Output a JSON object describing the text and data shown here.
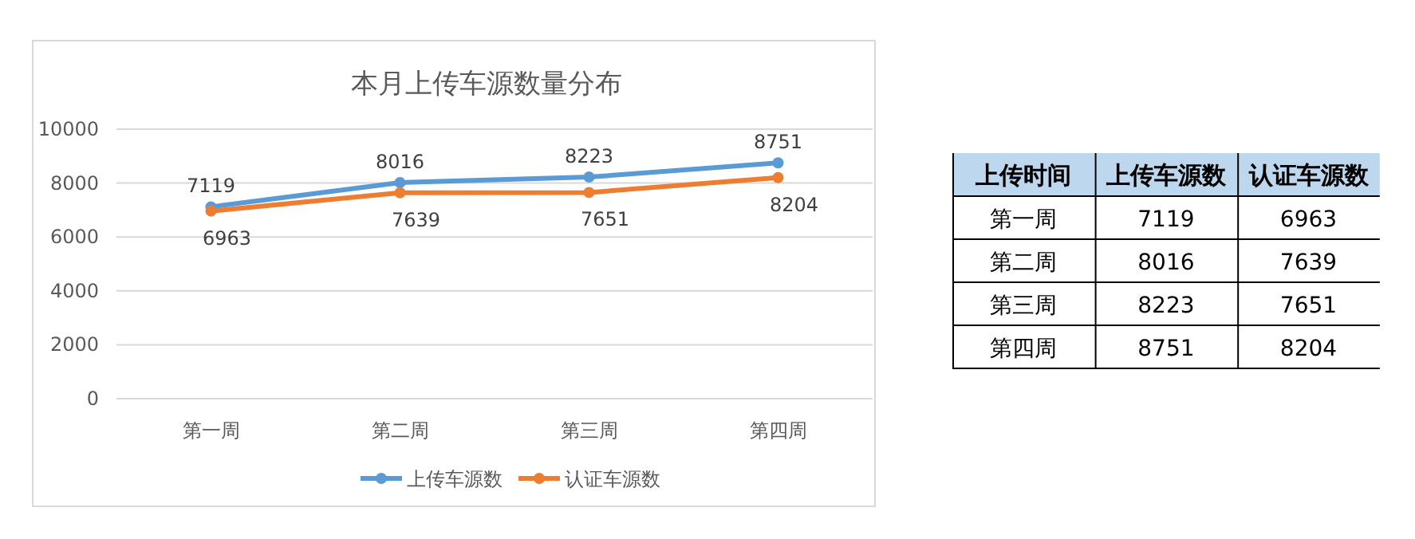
{
  "chart_data": [
    {
      "type": "line",
      "title": "本月上传车源数量分布",
      "categories": [
        "第一周",
        "第二周",
        "第三周",
        "第四周"
      ],
      "series": [
        {
          "name": "上传车源数",
          "color": "#5b9bd5",
          "values": [
            7119,
            8016,
            8223,
            8751
          ]
        },
        {
          "name": "认证车源数",
          "color": "#ed7d31",
          "values": [
            6963,
            7639,
            7651,
            8204
          ]
        }
      ],
      "ylim": [
        0,
        10000
      ],
      "yticks": [
        0,
        2000,
        4000,
        6000,
        8000,
        10000
      ],
      "grid": "y",
      "legend": "bottom",
      "marker": "circle",
      "line_style": "solid",
      "data_labels": true
    },
    {
      "type": "heatmap",
      "annotations": [
        "上传时间"
      ],
      "categories": [
        "上传车源数",
        "认证车源数"
      ],
      "y_categories": [
        "第一周",
        "第二周",
        "第三周",
        "第四周"
      ],
      "cells": [
        [
          7119,
          6963
        ],
        [
          8016,
          7639
        ],
        [
          8223,
          7651
        ],
        [
          8751,
          8204
        ]
      ],
      "data_labels": true
    }
  ]
}
